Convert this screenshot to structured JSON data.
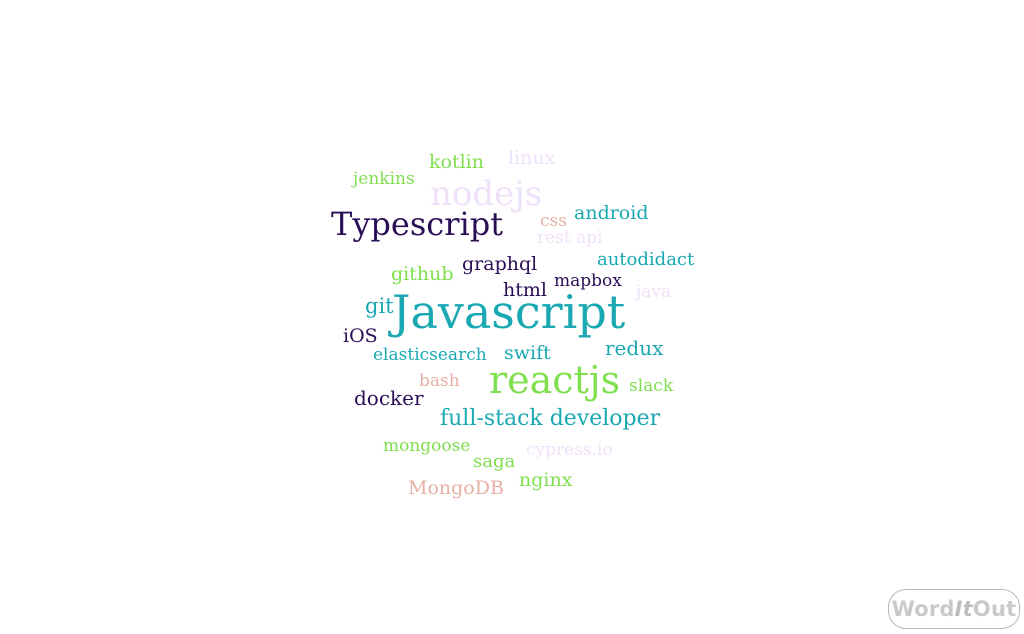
{
  "word_cloud": {
    "words": [
      {
        "text": "Javascript",
        "color": "#1aa9b3"
      },
      {
        "text": "reactjs",
        "color": "#80df4f"
      },
      {
        "text": "Typescript",
        "color": "#2b0f56"
      },
      {
        "text": "nodejs",
        "color": "#efe1f9"
      },
      {
        "text": "full-stack developer",
        "color": "#1aa9b3"
      },
      {
        "text": "android",
        "color": "#1aa9b3"
      },
      {
        "text": "MongoDB",
        "color": "#e6b0a4"
      },
      {
        "text": "graphql",
        "color": "#2b0f56"
      },
      {
        "text": "redux",
        "color": "#1aa9b3"
      },
      {
        "text": "docker",
        "color": "#2b0f56"
      },
      {
        "text": "kotlin",
        "color": "#80df4f"
      },
      {
        "text": "github",
        "color": "#80df4f"
      },
      {
        "text": "html",
        "color": "#2b0f56"
      },
      {
        "text": "swift",
        "color": "#1aa9b3"
      },
      {
        "text": "autodidact",
        "color": "#1aa9b3"
      },
      {
        "text": "saga",
        "color": "#80df4f"
      },
      {
        "text": "git",
        "color": "#1aa9b3"
      },
      {
        "text": "nginx",
        "color": "#80df4f"
      },
      {
        "text": "linux",
        "color": "#efe1f9"
      },
      {
        "text": "jenkins",
        "color": "#80df4f"
      },
      {
        "text": "mapbox",
        "color": "#2b0f56"
      },
      {
        "text": "elasticsearch",
        "color": "#1aa9b3"
      },
      {
        "text": "rest api",
        "color": "#efe1f9"
      },
      {
        "text": "java",
        "color": "#efe1f9"
      },
      {
        "text": "iOS",
        "color": "#2b0f56"
      },
      {
        "text": "slack",
        "color": "#80df4f"
      },
      {
        "text": "mongoose",
        "color": "#80df4f"
      },
      {
        "text": "bash",
        "color": "#e6b0a4"
      },
      {
        "text": "cypress.io",
        "color": "#efe1f9"
      },
      {
        "text": "css",
        "color": "#e6b0a4"
      }
    ]
  },
  "branding": {
    "badge_part_a": "Word",
    "badge_part_b": "It",
    "badge_part_c": "Out"
  }
}
